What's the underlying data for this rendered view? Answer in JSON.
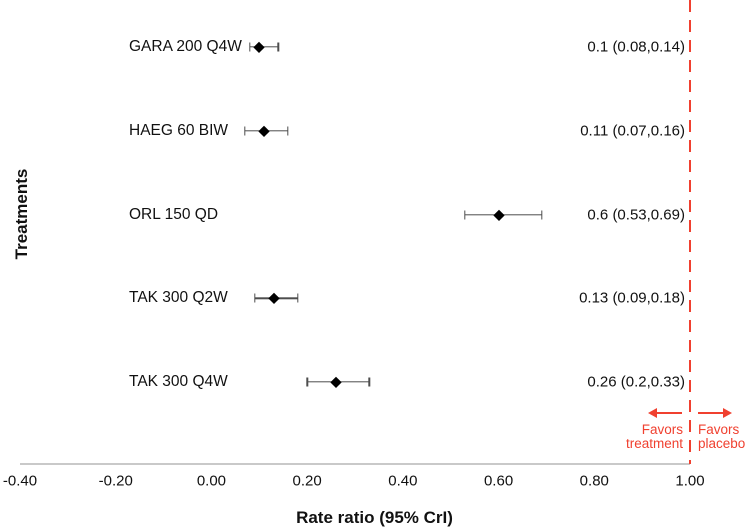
{
  "chart_data": {
    "type": "forest",
    "xlabel": "Rate ratio (95% CrI)",
    "ylabel": "Treatments",
    "xlim": [
      -0.4,
      1.0
    ],
    "xticks": [
      -0.4,
      -0.2,
      0.0,
      0.2,
      0.4,
      0.6,
      0.8,
      1.0
    ],
    "xtick_labels": [
      "-0.40",
      "-0.20",
      "0.00",
      "0.20",
      "0.40",
      "0.60",
      "0.80",
      "1.00"
    ],
    "grid": false,
    "rows": [
      {
        "label": "GARA 200 Q4W",
        "estimate": 0.1,
        "ci_low": 0.08,
        "ci_high": 0.14,
        "value_label": "0.1 (0.08,0.14)"
      },
      {
        "label": "HAEG 60 BIW",
        "estimate": 0.11,
        "ci_low": 0.07,
        "ci_high": 0.16,
        "value_label": "0.11 (0.07,0.16)"
      },
      {
        "label": "ORL 150 QD",
        "estimate": 0.6,
        "ci_low": 0.53,
        "ci_high": 0.69,
        "value_label": "0.6 (0.53,0.69)"
      },
      {
        "label": "TAK 300 Q2W",
        "estimate": 0.13,
        "ci_low": 0.09,
        "ci_high": 0.18,
        "value_label": "0.13 (0.09,0.18)"
      },
      {
        "label": "TAK 300 Q4W",
        "estimate": 0.26,
        "ci_low": 0.2,
        "ci_high": 0.33,
        "value_label": "0.26 (0.2,0.33)"
      }
    ],
    "reference_line": {
      "x": 1.0,
      "style": "dashed"
    },
    "annotations": {
      "favors_treatment": {
        "line1": "Favors",
        "line2": "treatment"
      },
      "favors_placebo": {
        "line1": "Favors",
        "line2": "placebo"
      }
    },
    "colors": {
      "accent_red": "#f0402f",
      "marker": "#000000",
      "whisker": "#4d4d4d",
      "axis_line": "#c9c9c9"
    }
  }
}
